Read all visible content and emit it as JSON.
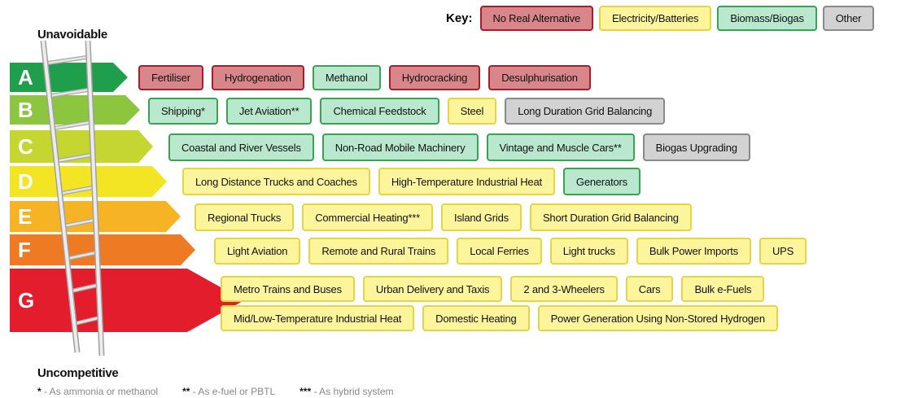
{
  "key": {
    "label": "Key:",
    "items": [
      {
        "label": "No Real Alternative",
        "fill": "#d9868b",
        "border": "#a51e2b"
      },
      {
        "label": "Electricity/Batteries",
        "fill": "#fdf59b",
        "border": "#e6d447"
      },
      {
        "label": "Biomass/Biogas",
        "fill": "#b9e8cf",
        "border": "#38a453"
      },
      {
        "label": "Other",
        "fill": "#d2d2d2",
        "border": "#8a8a8a"
      }
    ]
  },
  "top_label": "Unavoidable",
  "bottom_label": "Uncompetitive",
  "rows": [
    {
      "letter": "A",
      "color": "#1f9e4b",
      "lines": [
        [
          {
            "label": "Fertiliser",
            "key": 0
          },
          {
            "label": "Hydrogenation",
            "key": 0
          },
          {
            "label": "Methanol",
            "key": 2
          },
          {
            "label": "Hydrocracking",
            "key": 0
          },
          {
            "label": "Desulphurisation",
            "key": 0
          }
        ]
      ]
    },
    {
      "letter": "B",
      "color": "#8cc63f",
      "lines": [
        [
          {
            "label": "Shipping*",
            "key": 2
          },
          {
            "label": "Jet Aviation**",
            "key": 2
          },
          {
            "label": "Chemical Feedstock",
            "key": 2
          },
          {
            "label": "Steel",
            "key": 1
          },
          {
            "label": "Long Duration Grid Balancing",
            "key": 3
          }
        ]
      ]
    },
    {
      "letter": "C",
      "color": "#c5d631",
      "lines": [
        [
          {
            "label": "Coastal and River Vessels",
            "key": 2
          },
          {
            "label": "Non-Road Mobile Machinery",
            "key": 2
          },
          {
            "label": "Vintage and Muscle Cars**",
            "key": 2
          },
          {
            "label": "Biogas Upgrading",
            "key": 3
          }
        ]
      ]
    },
    {
      "letter": "D",
      "color": "#f3e524",
      "lines": [
        [
          {
            "label": "Long Distance Trucks and Coaches",
            "key": 1
          },
          {
            "label": "High-Temperature Industrial Heat",
            "key": 1
          },
          {
            "label": "Generators",
            "key": 2
          }
        ]
      ]
    },
    {
      "letter": "E",
      "color": "#f6b424",
      "lines": [
        [
          {
            "label": "Regional Trucks",
            "key": 1
          },
          {
            "label": "Commercial Heating***",
            "key": 1
          },
          {
            "label": "Island Grids",
            "key": 1
          },
          {
            "label": "Short Duration Grid Balancing",
            "key": 1
          }
        ]
      ]
    },
    {
      "letter": "F",
      "color": "#ee7a23",
      "lines": [
        [
          {
            "label": "Light Aviation",
            "key": 1
          },
          {
            "label": "Remote and Rural Trains",
            "key": 1
          },
          {
            "label": "Local Ferries",
            "key": 1
          },
          {
            "label": "Light trucks",
            "key": 1
          },
          {
            "label": "Bulk Power Imports",
            "key": 1
          },
          {
            "label": "UPS",
            "key": 1
          }
        ]
      ]
    },
    {
      "letter": "G",
      "color": "#e31d2c",
      "lines": [
        [
          {
            "label": "Metro Trains and Buses",
            "key": 1
          },
          {
            "label": "Urban Delivery and Taxis",
            "key": 1
          },
          {
            "label": "2 and 3-Wheelers",
            "key": 1
          },
          {
            "label": "Cars",
            "key": 1
          },
          {
            "label": "Bulk e-Fuels",
            "key": 1
          }
        ],
        [
          {
            "label": "Mid/Low-Temperature Industrial Heat",
            "key": 1
          },
          {
            "label": "Domestic Heating",
            "key": 1
          },
          {
            "label": "Power Generation Using Non-Stored Hydrogen",
            "key": 1
          }
        ]
      ]
    }
  ],
  "footnotes": [
    {
      "marker": "*",
      "text": "- As ammonia or methanol"
    },
    {
      "marker": "**",
      "text": "- As e-fuel or PBTL"
    },
    {
      "marker": "***",
      "text": "- As hybrid system"
    }
  ]
}
